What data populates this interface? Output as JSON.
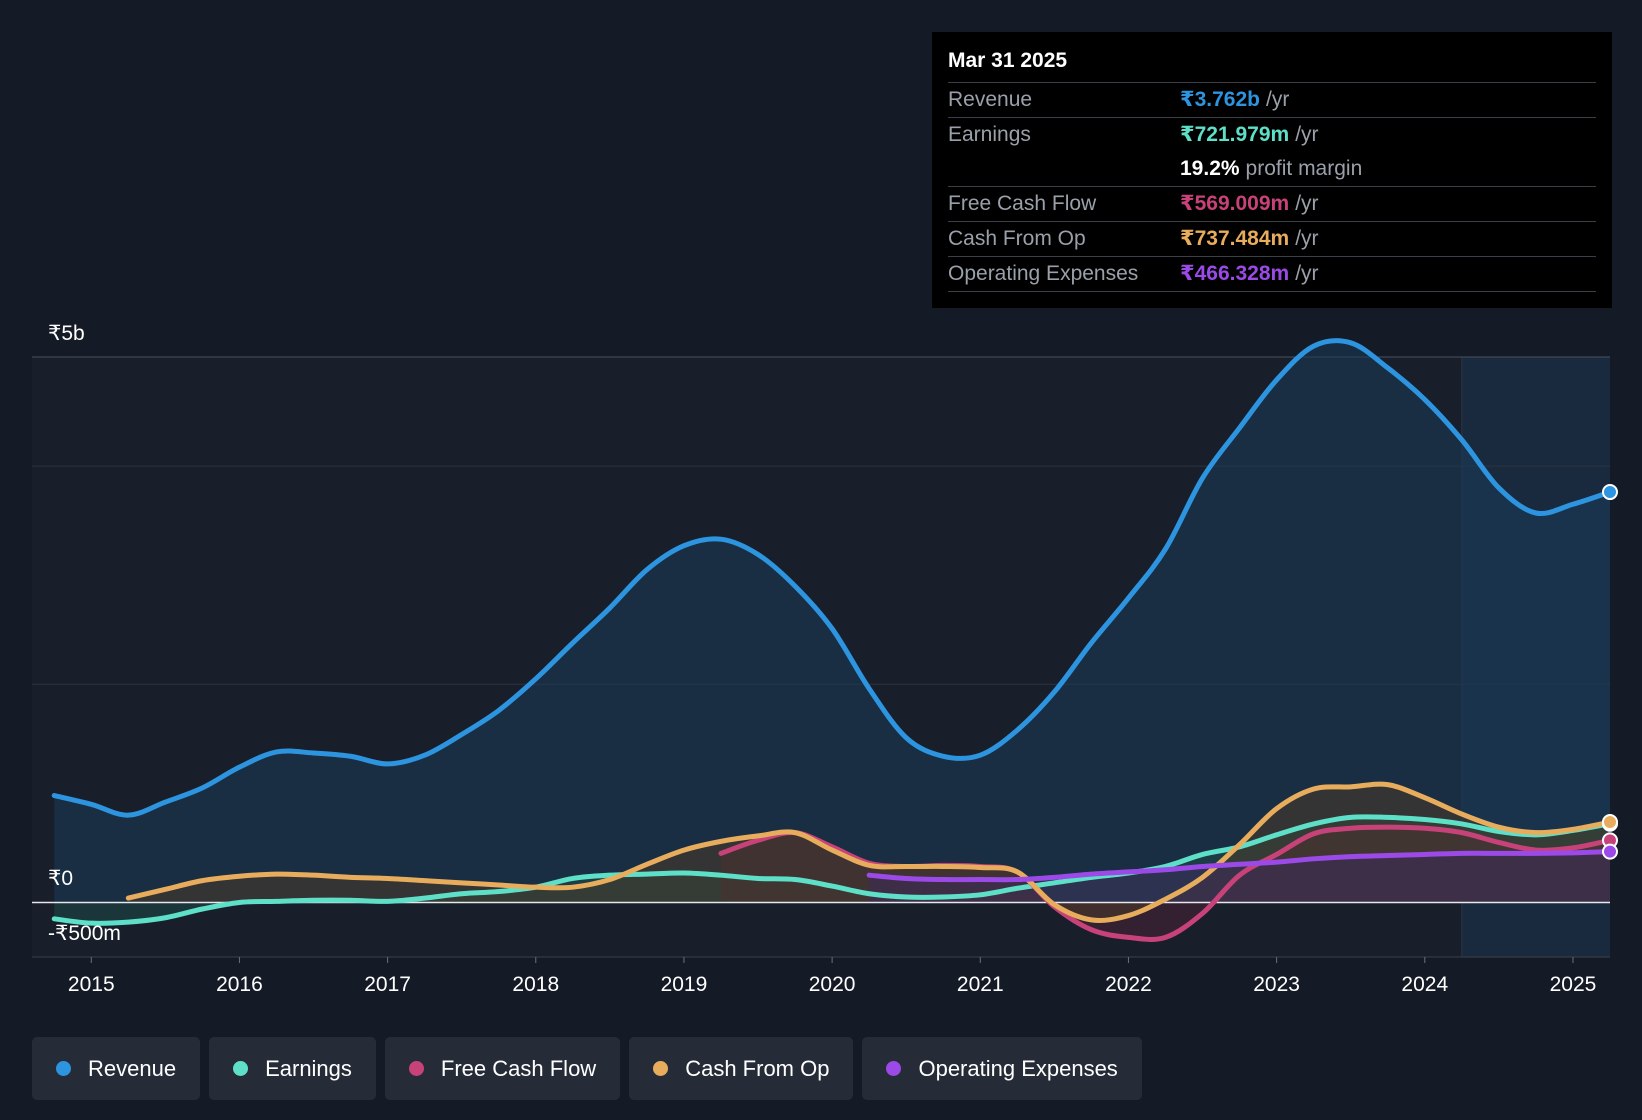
{
  "chart_data": {
    "type": "area",
    "currency": "₹",
    "y_labels": {
      "top": "₹5b",
      "zero": "₹0",
      "bottom": "-₹500m"
    },
    "ylim": [
      -500,
      5000
    ],
    "x_ticks": [
      "2015",
      "2016",
      "2017",
      "2018",
      "2019",
      "2020",
      "2021",
      "2022",
      "2023",
      "2024",
      "2025"
    ],
    "xlim": [
      2014.6,
      2025.25
    ],
    "forecast_start": 2024.25,
    "series": [
      {
        "name": "Revenue",
        "color": "#2d94e0",
        "fill": "#1b3a57",
        "points": [
          [
            2014.75,
            980
          ],
          [
            2015.0,
            900
          ],
          [
            2015.25,
            800
          ],
          [
            2015.5,
            920
          ],
          [
            2015.75,
            1050
          ],
          [
            2016.0,
            1240
          ],
          [
            2016.25,
            1380
          ],
          [
            2016.5,
            1370
          ],
          [
            2016.75,
            1340
          ],
          [
            2017.0,
            1270
          ],
          [
            2017.25,
            1350
          ],
          [
            2017.5,
            1540
          ],
          [
            2017.75,
            1760
          ],
          [
            2018.0,
            2050
          ],
          [
            2018.25,
            2380
          ],
          [
            2018.5,
            2700
          ],
          [
            2018.75,
            3050
          ],
          [
            2019.0,
            3270
          ],
          [
            2019.25,
            3330
          ],
          [
            2019.5,
            3190
          ],
          [
            2019.75,
            2900
          ],
          [
            2020.0,
            2510
          ],
          [
            2020.25,
            1960
          ],
          [
            2020.5,
            1510
          ],
          [
            2020.75,
            1340
          ],
          [
            2021.0,
            1350
          ],
          [
            2021.25,
            1580
          ],
          [
            2021.5,
            1930
          ],
          [
            2021.75,
            2380
          ],
          [
            2022.0,
            2790
          ],
          [
            2022.25,
            3240
          ],
          [
            2022.5,
            3890
          ],
          [
            2022.75,
            4350
          ],
          [
            2023.0,
            4790
          ],
          [
            2023.25,
            5100
          ],
          [
            2023.5,
            5130
          ],
          [
            2023.75,
            4900
          ],
          [
            2024.0,
            4610
          ],
          [
            2024.25,
            4240
          ],
          [
            2024.5,
            3800
          ],
          [
            2024.75,
            3570
          ],
          [
            2025.0,
            3650
          ],
          [
            2025.25,
            3762
          ]
        ]
      },
      {
        "name": "Earnings",
        "color": "#5ee0c8",
        "fill": "#1f4a48",
        "points": [
          [
            2014.75,
            -150
          ],
          [
            2015.0,
            -190
          ],
          [
            2015.25,
            -180
          ],
          [
            2015.5,
            -140
          ],
          [
            2015.75,
            -60
          ],
          [
            2016.0,
            0
          ],
          [
            2016.25,
            10
          ],
          [
            2016.5,
            20
          ],
          [
            2016.75,
            20
          ],
          [
            2017.0,
            10
          ],
          [
            2017.25,
            40
          ],
          [
            2017.5,
            80
          ],
          [
            2017.75,
            100
          ],
          [
            2018.0,
            140
          ],
          [
            2018.25,
            220
          ],
          [
            2018.5,
            250
          ],
          [
            2018.75,
            260
          ],
          [
            2019.0,
            270
          ],
          [
            2019.25,
            250
          ],
          [
            2019.5,
            220
          ],
          [
            2019.75,
            210
          ],
          [
            2020.0,
            150
          ],
          [
            2020.25,
            80
          ],
          [
            2020.5,
            50
          ],
          [
            2020.75,
            50
          ],
          [
            2021.0,
            70
          ],
          [
            2021.25,
            130
          ],
          [
            2021.5,
            180
          ],
          [
            2021.75,
            230
          ],
          [
            2022.0,
            270
          ],
          [
            2022.25,
            330
          ],
          [
            2022.5,
            440
          ],
          [
            2022.75,
            510
          ],
          [
            2023.0,
            620
          ],
          [
            2023.25,
            720
          ],
          [
            2023.5,
            780
          ],
          [
            2023.75,
            780
          ],
          [
            2024.0,
            760
          ],
          [
            2024.25,
            720
          ],
          [
            2024.5,
            650
          ],
          [
            2024.75,
            620
          ],
          [
            2025.0,
            660
          ],
          [
            2025.25,
            722
          ]
        ]
      },
      {
        "name": "Free Cash Flow",
        "color": "#c8427a",
        "fill": "#4a2438",
        "points": [
          [
            2019.25,
            450
          ],
          [
            2019.5,
            570
          ],
          [
            2019.75,
            640
          ],
          [
            2020.0,
            510
          ],
          [
            2020.25,
            360
          ],
          [
            2020.5,
            330
          ],
          [
            2020.75,
            340
          ],
          [
            2021.0,
            330
          ],
          [
            2021.25,
            280
          ],
          [
            2021.5,
            -40
          ],
          [
            2021.75,
            -250
          ],
          [
            2022.0,
            -320
          ],
          [
            2022.25,
            -320
          ],
          [
            2022.5,
            -100
          ],
          [
            2022.75,
            250
          ],
          [
            2023.0,
            440
          ],
          [
            2023.25,
            630
          ],
          [
            2023.5,
            680
          ],
          [
            2023.75,
            690
          ],
          [
            2024.0,
            680
          ],
          [
            2024.25,
            640
          ],
          [
            2024.5,
            550
          ],
          [
            2024.75,
            480
          ],
          [
            2025.0,
            500
          ],
          [
            2025.25,
            569
          ]
        ]
      },
      {
        "name": "Cash From Op",
        "color": "#e8ad5c",
        "fill": "#4a3a28",
        "points": [
          [
            2015.25,
            40
          ],
          [
            2015.5,
            120
          ],
          [
            2015.75,
            200
          ],
          [
            2016.0,
            240
          ],
          [
            2016.25,
            260
          ],
          [
            2016.5,
            250
          ],
          [
            2016.75,
            230
          ],
          [
            2017.0,
            220
          ],
          [
            2017.25,
            200
          ],
          [
            2017.5,
            180
          ],
          [
            2017.75,
            160
          ],
          [
            2018.0,
            140
          ],
          [
            2018.25,
            140
          ],
          [
            2018.5,
            210
          ],
          [
            2018.75,
            350
          ],
          [
            2019.0,
            480
          ],
          [
            2019.25,
            560
          ],
          [
            2019.5,
            610
          ],
          [
            2019.75,
            640
          ],
          [
            2020.0,
            480
          ],
          [
            2020.25,
            340
          ],
          [
            2020.5,
            330
          ],
          [
            2020.75,
            330
          ],
          [
            2021.0,
            320
          ],
          [
            2021.25,
            280
          ],
          [
            2021.5,
            -20
          ],
          [
            2021.75,
            -160
          ],
          [
            2022.0,
            -120
          ],
          [
            2022.25,
            30
          ],
          [
            2022.5,
            230
          ],
          [
            2022.75,
            530
          ],
          [
            2023.0,
            860
          ],
          [
            2023.25,
            1040
          ],
          [
            2023.5,
            1060
          ],
          [
            2023.75,
            1080
          ],
          [
            2024.0,
            960
          ],
          [
            2024.25,
            810
          ],
          [
            2024.5,
            690
          ],
          [
            2024.75,
            640
          ],
          [
            2025.0,
            670
          ],
          [
            2025.25,
            737
          ]
        ]
      },
      {
        "name": "Operating Expenses",
        "color": "#9b4ae8",
        "fill": "#3a2a5a",
        "points": [
          [
            2020.25,
            250
          ],
          [
            2020.5,
            220
          ],
          [
            2020.75,
            210
          ],
          [
            2021.0,
            210
          ],
          [
            2021.25,
            210
          ],
          [
            2021.5,
            230
          ],
          [
            2021.75,
            260
          ],
          [
            2022.0,
            280
          ],
          [
            2022.25,
            300
          ],
          [
            2022.5,
            330
          ],
          [
            2022.75,
            350
          ],
          [
            2023.0,
            370
          ],
          [
            2023.25,
            400
          ],
          [
            2023.5,
            420
          ],
          [
            2023.75,
            430
          ],
          [
            2024.0,
            440
          ],
          [
            2024.25,
            450
          ],
          [
            2024.5,
            450
          ],
          [
            2024.75,
            450
          ],
          [
            2025.0,
            455
          ],
          [
            2025.25,
            466
          ]
        ]
      }
    ]
  },
  "tooltip": {
    "date": "Mar 31 2025",
    "rows": [
      {
        "label": "Revenue",
        "value": "₹3.762b",
        "unit": "/yr",
        "color": "#2d94e0"
      },
      {
        "label": "Earnings",
        "value": "₹721.979m",
        "unit": "/yr",
        "color": "#5ee0c8"
      },
      {
        "label": "Free Cash Flow",
        "value": "₹569.009m",
        "unit": "/yr",
        "color": "#c8427a"
      },
      {
        "label": "Cash From Op",
        "value": "₹737.484m",
        "unit": "/yr",
        "color": "#e8ad5c"
      },
      {
        "label": "Operating Expenses",
        "value": "₹466.328m",
        "unit": "/yr",
        "color": "#9b4ae8"
      }
    ],
    "profit_margin": {
      "value": "19.2%",
      "text": "profit margin"
    }
  },
  "legend": [
    {
      "label": "Revenue",
      "color": "#2d94e0"
    },
    {
      "label": "Earnings",
      "color": "#5ee0c8"
    },
    {
      "label": "Free Cash Flow",
      "color": "#c8427a"
    },
    {
      "label": "Cash From Op",
      "color": "#e8ad5c"
    },
    {
      "label": "Operating Expenses",
      "color": "#9b4ae8"
    }
  ]
}
